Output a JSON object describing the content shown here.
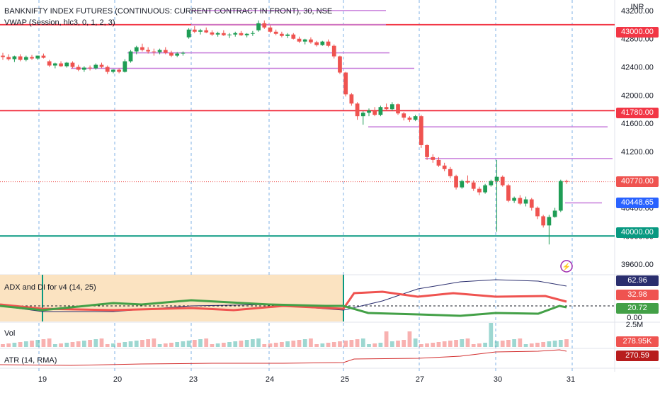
{
  "header": {
    "title": "BANKNIFTY INDEX FUTURES (CONTINUOUS: CURRENT CONTRACT IN FRONT), 30, NSE",
    "vwap_label": "VWAP (Session, hlc3, 0, 1, 2, 3)",
    "currency": "INR"
  },
  "panes": {
    "adx_label": "ADX and DI for v4 (14, 25)",
    "vol_label": "Vol",
    "atr_label": "ATR (14, RMA)"
  },
  "price_axis": {
    "ticks": [
      "43200.00",
      "42800.00",
      "42400.00",
      "42000.00",
      "41600.00",
      "41200.00",
      "40800.00",
      "40400.00",
      "40000.00",
      "39600.00"
    ]
  },
  "adx_axis": {
    "ticks": [
      "0.00"
    ]
  },
  "vol_axis": {
    "ticks": [
      "2.5M"
    ]
  },
  "tags": {
    "res1": "43000.00",
    "res2": "41780.00",
    "last": "40770.00",
    "vwap": "40448.65",
    "sup": "40000.00",
    "adx": "62.96",
    "di_plus_or_minus": "32.98",
    "di_other": "20.72",
    "vol": "278.95K",
    "atr": "270.59"
  },
  "time_axis": {
    "labels": [
      "19",
      "20",
      "23",
      "24",
      "25",
      "27",
      "30",
      "31"
    ]
  },
  "colors": {
    "up": "#26a69a",
    "up_candle": "#1f9d55",
    "down": "#ef5350",
    "red_line": "#f23645",
    "teal_line": "#089981",
    "vwap": "#c77ddb",
    "adx": "#2a2e6e",
    "session_fill": "#fbe3c1"
  },
  "chart_data": {
    "type": "candlestick",
    "title": "BANKNIFTY INDEX FUTURES (CONTINUOUS: CURRENT CONTRACT IN FRONT), 30, NSE",
    "ylim": [
      39450,
      43350
    ],
    "horizontal_levels": [
      43000,
      41780,
      40000
    ],
    "last_price": 40770,
    "vwap_last": 40448.65,
    "days": [
      "19",
      "20",
      "23",
      "24",
      "25",
      "27",
      "30",
      "31"
    ],
    "candles": [
      [
        42560,
        42600,
        42500,
        42540
      ],
      [
        42540,
        42580,
        42490,
        42510
      ],
      [
        42510,
        42560,
        42470,
        42550
      ],
      [
        42550,
        42580,
        42480,
        42500
      ],
      [
        42500,
        42560,
        42480,
        42540
      ],
      [
        42540,
        42570,
        42500,
        42520
      ],
      [
        42520,
        42560,
        42500,
        42560
      ],
      [
        42560,
        42590,
        42520,
        42530
      ],
      [
        42480,
        42500,
        42400,
        42420
      ],
      [
        42420,
        42460,
        42380,
        42450
      ],
      [
        42450,
        42480,
        42400,
        42410
      ],
      [
        42410,
        42470,
        42390,
        42460
      ],
      [
        42460,
        42480,
        42380,
        42400
      ],
      [
        42400,
        42430,
        42340,
        42360
      ],
      [
        42360,
        42410,
        42330,
        42390
      ],
      [
        42390,
        42420,
        42350,
        42380
      ],
      [
        42380,
        42450,
        42360,
        42430
      ],
      [
        42430,
        42460,
        42380,
        42400
      ],
      [
        42400,
        42420,
        42300,
        42330
      ],
      [
        42330,
        42370,
        42310,
        42360
      ],
      [
        42360,
        42380,
        42310,
        42330
      ],
      [
        42330,
        42510,
        42320,
        42480
      ],
      [
        42480,
        42640,
        42460,
        42620
      ],
      [
        42620,
        42700,
        42580,
        42680
      ],
      [
        42680,
        42730,
        42620,
        42640
      ],
      [
        42640,
        42680,
        42590,
        42620
      ],
      [
        42620,
        42660,
        42560,
        42610
      ],
      [
        42610,
        42660,
        42580,
        42640
      ],
      [
        42640,
        42680,
        42580,
        42600
      ],
      [
        42600,
        42630,
        42540,
        42560
      ],
      [
        42560,
        42610,
        42540,
        42590
      ],
      [
        42590,
        42620,
        42560,
        42600
      ],
      [
        42820,
        42950,
        42800,
        42930
      ],
      [
        42930,
        42980,
        42880,
        42900
      ],
      [
        42900,
        42940,
        42860,
        42920
      ],
      [
        42920,
        42960,
        42880,
        42890
      ],
      [
        42890,
        42920,
        42840,
        42860
      ],
      [
        42860,
        42900,
        42830,
        42880
      ],
      [
        42880,
        42920,
        42840,
        42850
      ],
      [
        42850,
        42880,
        42810,
        42860
      ],
      [
        42860,
        42900,
        42830,
        42880
      ],
      [
        42880,
        42910,
        42840,
        42850
      ],
      [
        42850,
        42880,
        42820,
        42870
      ],
      [
        42870,
        42910,
        42840,
        42880
      ],
      [
        42920,
        43060,
        42900,
        43020
      ],
      [
        43020,
        43060,
        42940,
        42960
      ],
      [
        42960,
        42990,
        42880,
        42900
      ],
      [
        42900,
        42930,
        42850,
        42870
      ],
      [
        42870,
        42900,
        42820,
        42840
      ],
      [
        42840,
        42880,
        42810,
        42860
      ],
      [
        42860,
        42880,
        42790,
        42800
      ],
      [
        42800,
        42830,
        42740,
        42760
      ],
      [
        42760,
        42800,
        42720,
        42790
      ],
      [
        42790,
        42820,
        42730,
        42750
      ],
      [
        42750,
        42770,
        42690,
        42710
      ],
      [
        42710,
        42770,
        42700,
        42760
      ],
      [
        42760,
        42790,
        42680,
        42700
      ],
      [
        42700,
        42720,
        42520,
        42550
      ],
      [
        42550,
        42560,
        42300,
        42320
      ],
      [
        42320,
        42330,
        41980,
        42010
      ],
      [
        42010,
        42030,
        41850,
        41880
      ],
      [
        41880,
        41900,
        41650,
        41700
      ],
      [
        41700,
        41770,
        41580,
        41750
      ],
      [
        41750,
        41810,
        41700,
        41780
      ],
      [
        41780,
        41830,
        41700,
        41720
      ],
      [
        41720,
        41850,
        41700,
        41830
      ],
      [
        41830,
        41880,
        41790,
        41800
      ],
      [
        41800,
        41900,
        41780,
        41870
      ],
      [
        41870,
        41880,
        41720,
        41740
      ],
      [
        41740,
        41760,
        41640,
        41680
      ],
      [
        41680,
        41700,
        41620,
        41650
      ],
      [
        41650,
        41720,
        41630,
        41700
      ],
      [
        41700,
        41720,
        41250,
        41290
      ],
      [
        41290,
        41300,
        41080,
        41120
      ],
      [
        41120,
        41160,
        41040,
        41080
      ],
      [
        41080,
        41120,
        40980,
        41000
      ],
      [
        41000,
        41040,
        40920,
        40950
      ],
      [
        40950,
        40980,
        40820,
        40850
      ],
      [
        40850,
        40870,
        40660,
        40690
      ],
      [
        40690,
        40800,
        40670,
        40780
      ],
      [
        40780,
        40860,
        40740,
        40760
      ],
      [
        40760,
        40790,
        40640,
        40670
      ],
      [
        40670,
        40700,
        40580,
        40620
      ],
      [
        40620,
        40740,
        40600,
        40720
      ],
      [
        40720,
        40800,
        40700,
        40780
      ],
      [
        40780,
        41080,
        40060,
        40840
      ],
      [
        40840,
        40860,
        40700,
        40720
      ],
      [
        40720,
        40740,
        40480,
        40500
      ],
      [
        40500,
        40560,
        40470,
        40540
      ],
      [
        40540,
        40580,
        40440,
        40460
      ],
      [
        40460,
        40560,
        40420,
        40520
      ],
      [
        40520,
        40540,
        40360,
        40400
      ],
      [
        40400,
        40420,
        40240,
        40280
      ],
      [
        40280,
        40300,
        40120,
        40150
      ],
      [
        40150,
        40300,
        39880,
        40270
      ],
      [
        40270,
        40400,
        40260,
        40360
      ],
      [
        40360,
        40800,
        40340,
        40780
      ],
      [
        40780,
        40800,
        40740,
        40770
      ]
    ],
    "adx": {
      "last": 62.96
    },
    "di_plus": {
      "last": 32.98
    },
    "di_minus": {
      "last": 20.72
    },
    "volume_last": "278.95K",
    "atr_last": 270.59
  }
}
